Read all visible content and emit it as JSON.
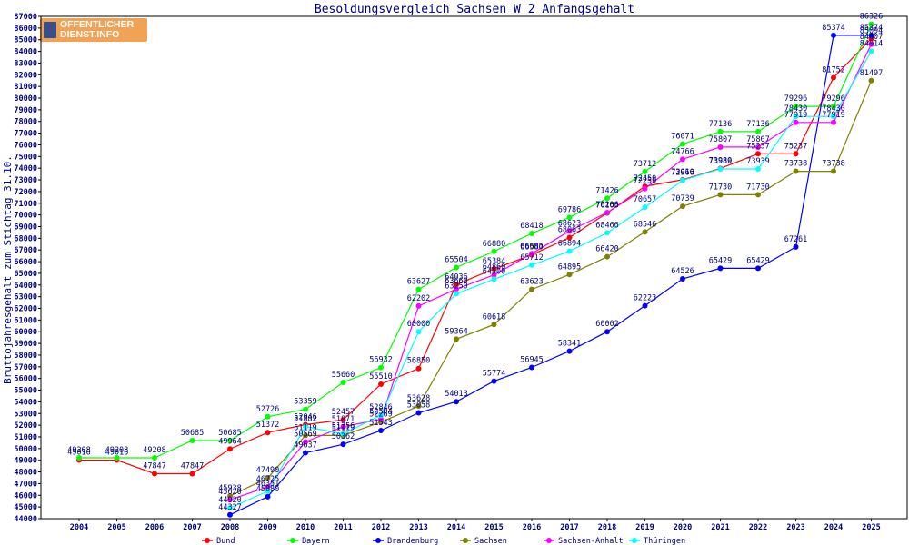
{
  "logo": {
    "line1": "OFFENTLICHER",
    "line2": "DIENST.INFO"
  },
  "chart_data": {
    "type": "line",
    "title": "Besoldungsvergleich Sachsen W 2 Anfangsgehalt",
    "xlabel": "",
    "ylabel": "Bruttojahresgehalt zum Stichtag 31.10.",
    "ylim": [
      44000,
      87000
    ],
    "ystep": 1000,
    "grid": false,
    "legend_position": "bottom",
    "categories": [
      "2004",
      "2005",
      "2006",
      "2007",
      "2008",
      "2009",
      "2010",
      "2011",
      "2012",
      "2013",
      "2014",
      "2015",
      "2016",
      "2017",
      "2018",
      "2019",
      "2020",
      "2021",
      "2022",
      "2023",
      "2024",
      "2025"
    ],
    "series": [
      {
        "name": "Bund",
        "color": "#ff0000",
        "values": [
          49016,
          49016,
          47847,
          47847,
          49964,
          51372,
          52046,
          52457,
          55510,
          56850,
          64036,
          65384,
          66580,
          68063,
          70163,
          72450,
          73010,
          73980,
          75237,
          75237,
          81752,
          85094
        ]
      },
      {
        "name": "Bayern",
        "color": "#00ff00",
        "values": [
          49208,
          49208,
          49208,
          50685,
          50685,
          52726,
          53359,
          55660,
          56932,
          63627,
          65504,
          66880,
          68418,
          69786,
          71426,
          73712,
          76071,
          77136,
          77136,
          79296,
          79296,
          86326
        ]
      },
      {
        "name": "Brandenburg",
        "color": "#0000ff",
        "values": [
          null,
          null,
          null,
          null,
          44327,
          45880,
          49637,
          50362,
          51543,
          53058,
          54013,
          55774,
          56945,
          58341,
          60002,
          62223,
          64526,
          65429,
          65429,
          67261,
          85374,
          85374
        ]
      },
      {
        "name": "Sachsen",
        "color": "#808000",
        "values": [
          null,
          null,
          null,
          null,
          45938,
          47490,
          51119,
          51119,
          52269,
          53628,
          59364,
          60618,
          63623,
          64895,
          66420,
          68546,
          70739,
          71730,
          71730,
          73738,
          73738,
          81497
        ]
      },
      {
        "name": "Sachsen-Anhalt",
        "color": "#ff00ff",
        "values": [
          null,
          null,
          null,
          null,
          45620,
          46725,
          50569,
          51871,
          52504,
          62202,
          63660,
          64860,
          66685,
          68623,
          70206,
          72250,
          74766,
          75807,
          75807,
          77919,
          77919,
          84607
        ]
      },
      {
        "name": "Thüringen",
        "color": "#00ffff",
        "values": [
          null,
          null,
          null,
          null,
          44920,
          46351,
          51882,
          51256,
          52846,
          60000,
          63250,
          64500,
          65712,
          66894,
          68466,
          70657,
          72966,
          73939,
          73939,
          78430,
          78430,
          84014
        ]
      }
    ]
  }
}
